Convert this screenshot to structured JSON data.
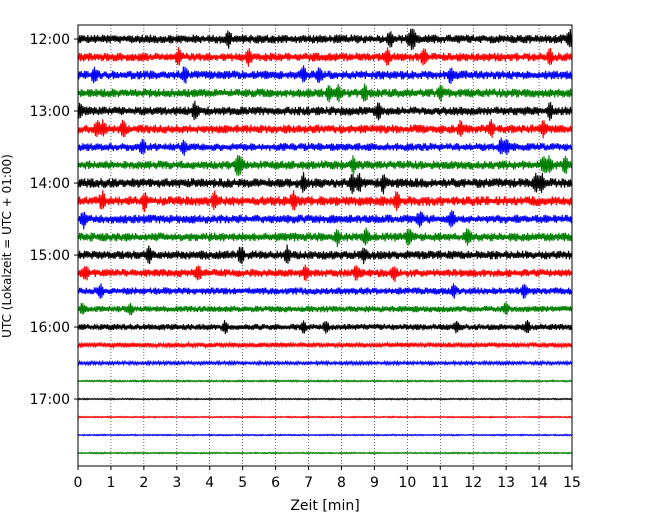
{
  "chart_data": {
    "type": "line",
    "title": "",
    "xlabel": "Zeit  [min]",
    "ylabel": "UTC (Lokalzeit = UTC + 01:00)",
    "xlim": [
      0,
      15
    ],
    "x_ticks": [
      0,
      1,
      2,
      3,
      4,
      5,
      6,
      7,
      8,
      9,
      10,
      11,
      12,
      13,
      14,
      15
    ],
    "y_tick_labels": [
      "12:00",
      "13:00",
      "14:00",
      "15:00",
      "16:00",
      "17:00"
    ],
    "rows_per_hour": 4,
    "row_minutes": 15,
    "grid": "vertical dotted at each minute",
    "color_cycle": [
      "#000000",
      "#ff0000",
      "#0000ff",
      "#008000"
    ],
    "rows": [
      {
        "start": "12:00",
        "amplitude": 0.55
      },
      {
        "start": "12:15",
        "amplitude": 0.55
      },
      {
        "start": "12:30",
        "amplitude": 0.55
      },
      {
        "start": "12:45",
        "amplitude": 0.55
      },
      {
        "start": "13:00",
        "amplitude": 0.55
      },
      {
        "start": "13:15",
        "amplitude": 0.55
      },
      {
        "start": "13:30",
        "amplitude": 0.5
      },
      {
        "start": "13:45",
        "amplitude": 0.55
      },
      {
        "start": "14:00",
        "amplitude": 0.6
      },
      {
        "start": "14:15",
        "amplitude": 0.6
      },
      {
        "start": "14:30",
        "amplitude": 0.55
      },
      {
        "start": "14:45",
        "amplitude": 0.55
      },
      {
        "start": "15:00",
        "amplitude": 0.55
      },
      {
        "start": "15:15",
        "amplitude": 0.5
      },
      {
        "start": "15:30",
        "amplitude": 0.45
      },
      {
        "start": "15:45",
        "amplitude": 0.4
      },
      {
        "start": "16:00",
        "amplitude": 0.4
      },
      {
        "start": "16:15",
        "amplitude": 0.3
      },
      {
        "start": "16:30",
        "amplitude": 0.2
      },
      {
        "start": "16:45",
        "amplitude": 0.1
      },
      {
        "start": "17:00",
        "amplitude": 0.08
      },
      {
        "start": "17:15",
        "amplitude": 0.08
      },
      {
        "start": "17:30",
        "amplitude": 0.08
      },
      {
        "start": "17:45",
        "amplitude": 0.08
      }
    ]
  }
}
